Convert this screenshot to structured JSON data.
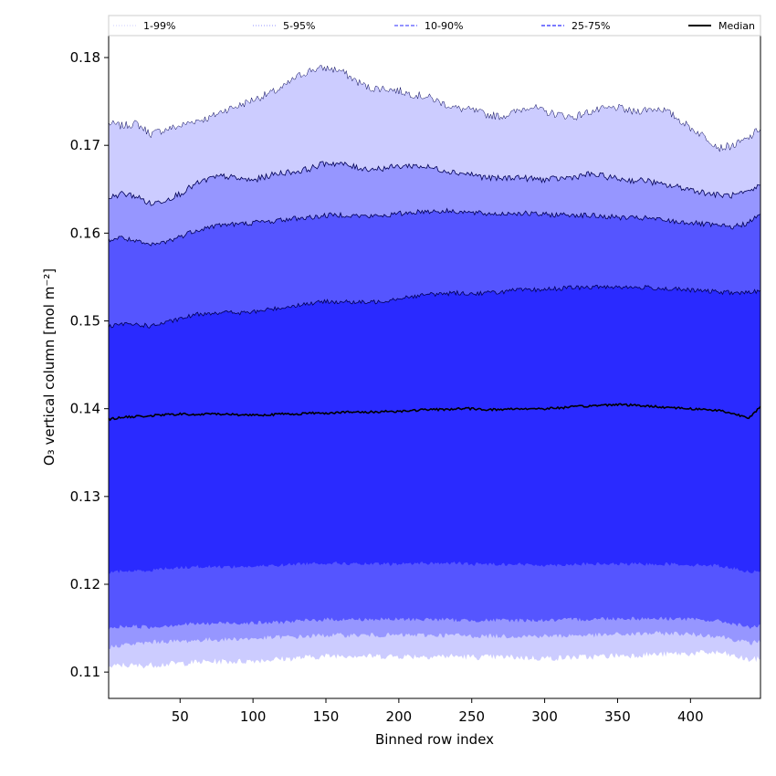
{
  "chart_data": {
    "type": "area",
    "title": "",
    "xlabel": "Binned row index",
    "ylabel": "O₃ vertical column [mol m⁻²]",
    "xlim": [
      1,
      448
    ],
    "ylim": [
      0.107,
      0.1825
    ],
    "xticks": [
      50,
      100,
      150,
      200,
      250,
      300,
      350,
      400
    ],
    "yticks": [
      0.11,
      0.12,
      0.13,
      0.14,
      0.15,
      0.16,
      0.17,
      0.18
    ],
    "ytick_labels": [
      "0.11",
      "0.12",
      "0.13",
      "0.14",
      "0.15",
      "0.16",
      "0.17",
      "0.18"
    ],
    "grid": false,
    "legend_position": "top",
    "x": [
      1,
      10,
      20,
      30,
      40,
      50,
      60,
      70,
      80,
      90,
      100,
      110,
      120,
      130,
      140,
      150,
      160,
      170,
      180,
      190,
      200,
      210,
      220,
      230,
      240,
      250,
      260,
      270,
      280,
      290,
      300,
      310,
      320,
      330,
      340,
      350,
      360,
      370,
      380,
      390,
      400,
      410,
      420,
      430,
      440,
      448
    ],
    "series": [
      {
        "name": "1-99%",
        "color": "#ccccff",
        "line_style": "dotted",
        "lower": [
          0.1105,
          0.1108,
          0.1107,
          0.1108,
          0.1109,
          0.111,
          0.1111,
          0.1112,
          0.1112,
          0.1112,
          0.1113,
          0.1114,
          0.1115,
          0.1116,
          0.1117,
          0.1118,
          0.1119,
          0.1119,
          0.1118,
          0.1118,
          0.1118,
          0.1118,
          0.1118,
          0.1118,
          0.1118,
          0.1117,
          0.1117,
          0.1117,
          0.1117,
          0.1116,
          0.1116,
          0.1116,
          0.1117,
          0.1117,
          0.1118,
          0.1119,
          0.1119,
          0.112,
          0.112,
          0.1121,
          0.1121,
          0.1122,
          0.1122,
          0.1118,
          0.1114,
          0.1115
        ],
        "upper": [
          0.1725,
          0.1722,
          0.1725,
          0.1713,
          0.1718,
          0.1722,
          0.1728,
          0.1731,
          0.174,
          0.1745,
          0.1752,
          0.1758,
          0.1765,
          0.1778,
          0.1786,
          0.1788,
          0.1785,
          0.1774,
          0.1765,
          0.1765,
          0.1762,
          0.1758,
          0.1755,
          0.1748,
          0.1742,
          0.174,
          0.1735,
          0.1733,
          0.1738,
          0.1745,
          0.1738,
          0.1735,
          0.1732,
          0.1738,
          0.1741,
          0.1743,
          0.1738,
          0.1741,
          0.1742,
          0.1732,
          0.172,
          0.171,
          0.1697,
          0.17,
          0.1708,
          0.172
        ]
      },
      {
        "name": "5-95%",
        "color": "#9696ff",
        "line_style": "dotted",
        "lower": [
          0.1128,
          0.1131,
          0.1132,
          0.1134,
          0.1135,
          0.1135,
          0.1136,
          0.1137,
          0.1137,
          0.1138,
          0.1138,
          0.1139,
          0.114,
          0.114,
          0.1141,
          0.1142,
          0.1142,
          0.1142,
          0.1142,
          0.1142,
          0.1142,
          0.1142,
          0.1142,
          0.1142,
          0.1142,
          0.1141,
          0.1141,
          0.1141,
          0.1141,
          0.1141,
          0.1141,
          0.1141,
          0.1142,
          0.1142,
          0.1142,
          0.1143,
          0.1143,
          0.1144,
          0.1144,
          0.1144,
          0.1143,
          0.1142,
          0.1141,
          0.1137,
          0.1133,
          0.1135
        ],
        "upper": [
          0.164,
          0.1645,
          0.1642,
          0.1633,
          0.1638,
          0.1645,
          0.1655,
          0.1662,
          0.1665,
          0.1662,
          0.166,
          0.1665,
          0.1669,
          0.167,
          0.1674,
          0.168,
          0.1679,
          0.1675,
          0.1673,
          0.1674,
          0.1676,
          0.1677,
          0.1675,
          0.1672,
          0.1669,
          0.1667,
          0.1663,
          0.1662,
          0.1664,
          0.1662,
          0.1661,
          0.1662,
          0.1664,
          0.1667,
          0.1665,
          0.1662,
          0.166,
          0.166,
          0.1655,
          0.1653,
          0.165,
          0.1646,
          0.1643,
          0.1643,
          0.1646,
          0.1655
        ]
      },
      {
        "name": "10-90%",
        "color": "#5555ff",
        "line_style": "dashed",
        "lower": [
          0.1149,
          0.1152,
          0.1152,
          0.1151,
          0.1153,
          0.1154,
          0.1155,
          0.1155,
          0.1156,
          0.1156,
          0.1156,
          0.1156,
          0.1157,
          0.1158,
          0.1159,
          0.116,
          0.116,
          0.116,
          0.116,
          0.116,
          0.116,
          0.116,
          0.116,
          0.116,
          0.1159,
          0.1159,
          0.1159,
          0.1159,
          0.1159,
          0.1159,
          0.1159,
          0.1159,
          0.116,
          0.116,
          0.1161,
          0.1161,
          0.1161,
          0.1161,
          0.1161,
          0.1161,
          0.116,
          0.1159,
          0.1158,
          0.1155,
          0.1151,
          0.1153
        ],
        "upper": [
          0.1592,
          0.1595,
          0.159,
          0.1586,
          0.159,
          0.1596,
          0.1603,
          0.1607,
          0.161,
          0.161,
          0.1612,
          0.1613,
          0.1615,
          0.1617,
          0.1618,
          0.162,
          0.1621,
          0.162,
          0.1619,
          0.162,
          0.1622,
          0.1624,
          0.1625,
          0.1625,
          0.1625,
          0.1623,
          0.1622,
          0.1622,
          0.1623,
          0.1622,
          0.1621,
          0.1621,
          0.1621,
          0.162,
          0.1619,
          0.1618,
          0.1617,
          0.1617,
          0.1615,
          0.1613,
          0.1612,
          0.161,
          0.1608,
          0.1607,
          0.1612,
          0.1621
        ]
      },
      {
        "name": "25-75%",
        "color": "#2a2aff",
        "line_style": "dashed",
        "lower": [
          0.1213,
          0.1215,
          0.1215,
          0.1216,
          0.1218,
          0.1219,
          0.122,
          0.122,
          0.122,
          0.122,
          0.122,
          0.1221,
          0.1222,
          0.1223,
          0.1224,
          0.1224,
          0.1224,
          0.1223,
          0.1223,
          0.1223,
          0.1223,
          0.1224,
          0.1224,
          0.1224,
          0.1224,
          0.1223,
          0.1223,
          0.1223,
          0.1223,
          0.1222,
          0.1222,
          0.1222,
          0.1223,
          0.1223,
          0.1223,
          0.1223,
          0.1223,
          0.1223,
          0.1223,
          0.1223,
          0.1222,
          0.1222,
          0.1221,
          0.1218,
          0.1214,
          0.1216
        ],
        "upper": [
          0.1493,
          0.1496,
          0.1496,
          0.1494,
          0.1498,
          0.1502,
          0.1507,
          0.1509,
          0.151,
          0.1509,
          0.151,
          0.1513,
          0.1515,
          0.1518,
          0.152,
          0.1522,
          0.1522,
          0.1521,
          0.1521,
          0.1523,
          0.1526,
          0.1528,
          0.153,
          0.1531,
          0.1532,
          0.1531,
          0.1532,
          0.1533,
          0.1535,
          0.1535,
          0.1536,
          0.1537,
          0.1538,
          0.1538,
          0.1539,
          0.1539,
          0.1538,
          0.1538,
          0.1537,
          0.1536,
          0.1535,
          0.1534,
          0.1533,
          0.1532,
          0.1532,
          0.1535
        ]
      }
    ],
    "median": {
      "name": "Median",
      "color": "#000000",
      "values": [
        0.1388,
        0.139,
        0.1391,
        0.1392,
        0.1393,
        0.1394,
        0.1393,
        0.1394,
        0.1394,
        0.1393,
        0.1393,
        0.1393,
        0.1394,
        0.1394,
        0.1395,
        0.1395,
        0.1396,
        0.1396,
        0.1396,
        0.1397,
        0.1397,
        0.1398,
        0.1399,
        0.1399,
        0.14,
        0.14,
        0.1399,
        0.1399,
        0.14,
        0.14,
        0.14,
        0.1401,
        0.1402,
        0.1403,
        0.1404,
        0.1405,
        0.1404,
        0.1403,
        0.1402,
        0.1401,
        0.14,
        0.1399,
        0.1398,
        0.1394,
        0.139,
        0.1402
      ]
    },
    "legend": [
      "1-99%",
      "5-95%",
      "10-90%",
      "25-75%",
      "Median"
    ]
  }
}
